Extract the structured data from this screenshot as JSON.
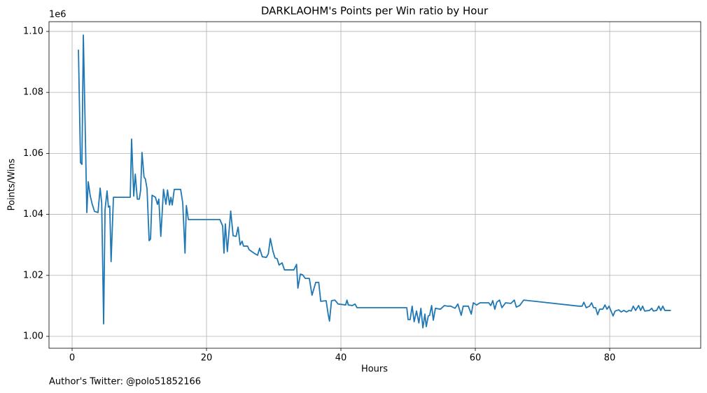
{
  "chart_data": {
    "type": "line",
    "title": "DARKLAOHM's Points per Win ratio by Hour",
    "xlabel": "Hours",
    "ylabel": "Points/Wins",
    "offset_label": "1e6",
    "footnote": "Author's Twitter: @polo51852166",
    "color": "#1f77b4",
    "grid": true,
    "xlim": [
      -3.44,
      93.54
    ],
    "ylim": [
      996100,
      1103200
    ],
    "xticks": [
      0,
      20,
      40,
      60,
      80
    ],
    "yticks": [
      {
        "value": 1000000,
        "label": "1.00"
      },
      {
        "value": 1020000,
        "label": "1.02"
      },
      {
        "value": 1040000,
        "label": "1.04"
      },
      {
        "value": 1060000,
        "label": "1.06"
      },
      {
        "value": 1080000,
        "label": "1.08"
      },
      {
        "value": 1100000,
        "label": "1.10"
      }
    ],
    "x": [
      0.94,
      1.25,
      1.46,
      1.67,
      1.88,
      2.19,
      2.4,
      2.7,
      3.0,
      3.33,
      3.85,
      4.17,
      4.4,
      4.69,
      4.9,
      5.2,
      5.4,
      5.6,
      5.8,
      6.15,
      8.65,
      8.85,
      9.17,
      9.4,
      9.7,
      10.0,
      10.2,
      10.4,
      10.7,
      10.9,
      11.15,
      11.46,
      11.67,
      11.9,
      12.4,
      12.7,
      12.9,
      13.2,
      13.6,
      13.96,
      14.2,
      14.5,
      14.7,
      14.9,
      15.2,
      16.15,
      16.46,
      16.8,
      17.0,
      17.3,
      22.0,
      22.4,
      22.6,
      22.8,
      23.1,
      23.6,
      23.96,
      24.4,
      24.7,
      25.0,
      25.3,
      25.5,
      26.1,
      26.35,
      27.2,
      27.6,
      27.9,
      28.3,
      28.9,
      29.2,
      29.5,
      29.9,
      30.2,
      30.5,
      30.8,
      31.25,
      31.6,
      33.0,
      33.4,
      33.6,
      33.96,
      34.3,
      34.7,
      35.3,
      35.7,
      36.25,
      36.7,
      37.0,
      37.8,
      38.1,
      38.3,
      38.6,
      39.1,
      39.6,
      40.7,
      40.9,
      41.1,
      41.7,
      42.1,
      42.4,
      49.8,
      50.0,
      50.3,
      50.6,
      50.9,
      51.25,
      51.6,
      51.9,
      52.2,
      52.5,
      52.7,
      53.0,
      53.2,
      53.5,
      53.75,
      54.06,
      54.8,
      55.4,
      55.9,
      56.35,
      56.98,
      57.4,
      57.9,
      58.2,
      58.96,
      59.4,
      59.7,
      60.2,
      60.7,
      62.0,
      62.3,
      62.6,
      62.9,
      63.2,
      63.6,
      63.96,
      64.5,
      65.3,
      65.8,
      66.1,
      66.6,
      67.2,
      75.4,
      75.9,
      76.15,
      76.5,
      77.0,
      77.3,
      77.6,
      77.9,
      78.2,
      78.5,
      78.96,
      79.3,
      79.6,
      79.9,
      80.2,
      80.5,
      80.8,
      81.35,
      81.7,
      82.1,
      82.5,
      82.9,
      83.2,
      83.5,
      83.85,
      84.3,
      84.6,
      84.9,
      85.2,
      85.9,
      86.25,
      86.5,
      86.98,
      87.3,
      87.6,
      87.9,
      88.2,
      89.1
    ],
    "values": [
      1094000,
      1057000,
      1056400,
      1098800,
      1076000,
      1040600,
      1050700,
      1046000,
      1043300,
      1041000,
      1040600,
      1048600,
      1043800,
      1004100,
      1041500,
      1047700,
      1042400,
      1042700,
      1024500,
      1045600,
      1045600,
      1064700,
      1046000,
      1053200,
      1045000,
      1045000,
      1048000,
      1060300,
      1052300,
      1051600,
      1048400,
      1031400,
      1031900,
      1046300,
      1045600,
      1043300,
      1045000,
      1032800,
      1048200,
      1043300,
      1048000,
      1043100,
      1045600,
      1043100,
      1048200,
      1048200,
      1043800,
      1027300,
      1042900,
      1038300,
      1038300,
      1036200,
      1027300,
      1036900,
      1027800,
      1041100,
      1033000,
      1032800,
      1035800,
      1030000,
      1031200,
      1029600,
      1029600,
      1028400,
      1027100,
      1026600,
      1028900,
      1026100,
      1025900,
      1027100,
      1032100,
      1027800,
      1025700,
      1025500,
      1023400,
      1024100,
      1021800,
      1021800,
      1023600,
      1015800,
      1020400,
      1020200,
      1019000,
      1019000,
      1013500,
      1017700,
      1017700,
      1011500,
      1011700,
      1007300,
      1005000,
      1011700,
      1011900,
      1010600,
      1010300,
      1011900,
      1010300,
      1010100,
      1010600,
      1009400,
      1009400,
      1005500,
      1005500,
      1009900,
      1004800,
      1008300,
      1004400,
      1009200,
      1002800,
      1007300,
      1003200,
      1006700,
      1006900,
      1010100,
      1005300,
      1009200,
      1008900,
      1010100,
      1009900,
      1009900,
      1009200,
      1010600,
      1006900,
      1009900,
      1009900,
      1007300,
      1011000,
      1010300,
      1011000,
      1011000,
      1010100,
      1011700,
      1008900,
      1011200,
      1011900,
      1009400,
      1011000,
      1010800,
      1011900,
      1009600,
      1010100,
      1011900,
      1009900,
      1009900,
      1011200,
      1009400,
      1009900,
      1011000,
      1009400,
      1009400,
      1007100,
      1008900,
      1008900,
      1010300,
      1008900,
      1009900,
      1008300,
      1006700,
      1008300,
      1008700,
      1008000,
      1008500,
      1008000,
      1008500,
      1008300,
      1009900,
      1008500,
      1010100,
      1008500,
      1009900,
      1008300,
      1008500,
      1009200,
      1008300,
      1008500,
      1009900,
      1008500,
      1009900,
      1008500,
      1008500
    ]
  }
}
